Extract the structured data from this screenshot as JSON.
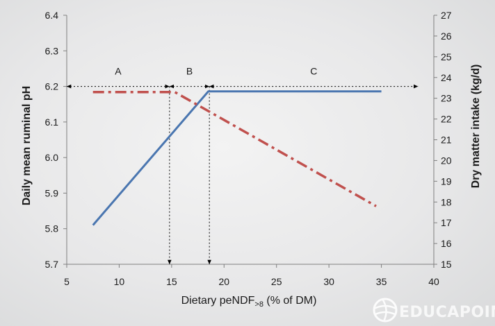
{
  "chart_data": {
    "type": "line",
    "xlabel": "Dietary peNDF",
    "xlabel_sub": ">8",
    "xlabel_suffix": " (% of DM)",
    "ylabel_left": "Daily mean ruminal pH",
    "ylabel_right": "Dry matter intake (kg/d)",
    "xlim": [
      5,
      40
    ],
    "ylim_left": [
      5.7,
      6.4
    ],
    "ylim_right": [
      15,
      27
    ],
    "x_ticks": [
      "5",
      "10",
      "15",
      "20",
      "25",
      "30",
      "35",
      "40"
    ],
    "y_left_ticks": [
      "5.7",
      "5.8",
      "5.9",
      "6.0",
      "6.1",
      "6.2",
      "6.3",
      "6.4"
    ],
    "y_right_ticks": [
      "15",
      "16",
      "17",
      "18",
      "19",
      "20",
      "21",
      "22",
      "23",
      "24",
      "25",
      "26",
      "27"
    ],
    "series": [
      {
        "axis": "left",
        "style": "solid",
        "color": "#4a76b0",
        "x": [
          7.5,
          18.5,
          35
        ],
        "y": [
          5.81,
          6.186,
          6.186
        ]
      },
      {
        "axis": "right",
        "style": "dash-dot",
        "color": "#c0504d",
        "x": [
          7.5,
          15.3,
          34.5
        ],
        "y": [
          23.3,
          23.3,
          17.8
        ]
      }
    ],
    "regions": [
      {
        "label": "A",
        "x_start": 5,
        "x_end": 14.8
      },
      {
        "label": "B",
        "x_start": 14.8,
        "x_end": 18.6
      },
      {
        "label": "C",
        "x_start": 18.6,
        "x_end": 38.5
      }
    ],
    "region_arrow_y_left": 6.2,
    "breakpoints": [
      {
        "x": 14.8,
        "y_left": 6.2
      },
      {
        "x": 18.6,
        "y_left": 6.2
      }
    ],
    "grid": false,
    "legend": "none"
  },
  "watermark": {
    "text": "EDUCAPOIN",
    "icon": "globe-icon"
  },
  "colors": {
    "axis": "#7f7f7f",
    "annotation": "#000000"
  }
}
